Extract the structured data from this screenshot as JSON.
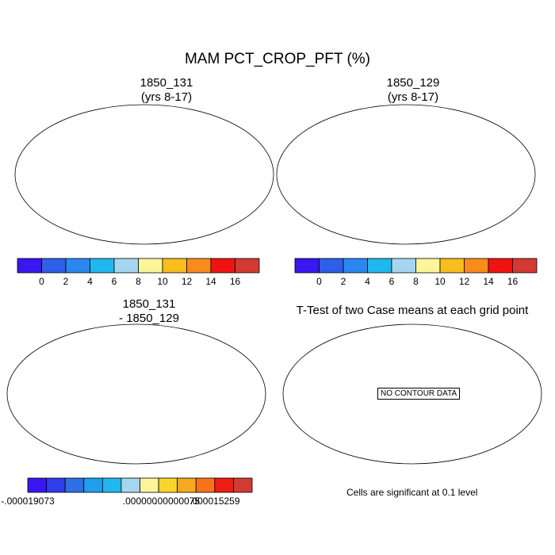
{
  "figure": {
    "title": "MAM PCT_CROP_PFT (%)"
  },
  "panels": {
    "case1": {
      "title_line1": "1850_131",
      "title_line2": "(yrs 8-17)"
    },
    "case2": {
      "title_line1": "1850_129",
      "title_line2": "(yrs 8-17)"
    },
    "diff": {
      "title_line1": "1850_131",
      "title_line2": "- 1850_129"
    },
    "ttest": {
      "title": "T-Test of two Case means at each grid point",
      "no_data_label": "NO CONTOUR DATA",
      "note": "Cells are significant at 0.1 level"
    }
  },
  "colorbars": {
    "main": {
      "colors": [
        "#3a16f0",
        "#2e5fe6",
        "#2b86ef",
        "#1fb8ee",
        "#a6d6ef",
        "#fbf59c",
        "#f7be1d",
        "#f88b1a",
        "#ef1414",
        "#d23a34"
      ],
      "labels": [
        "0",
        "2",
        "4",
        "6",
        "8",
        "10",
        "12",
        "14",
        "16"
      ]
    },
    "diff": {
      "colors": [
        "#3a16f0",
        "#2e3ee8",
        "#2e6ee6",
        "#1f9ef0",
        "#20b8ee",
        "#a6d6ef",
        "#fbf59c",
        "#f7d52a",
        "#f7a81d",
        "#f7731a",
        "#ef1e14",
        "#d23a34"
      ],
      "labels": [
        {
          "text": "-.000019073",
          "boundary": 0
        },
        {
          "text": ".000000",
          "boundary": 6
        },
        {
          "text": ".00000075",
          "boundary": 8
        },
        {
          "text": ".000015259",
          "boundary": 10
        }
      ]
    }
  },
  "map_colors": {
    "ocean": "#ffffff",
    "land_low": "#2f5fe2",
    "crop_mid": "#f6c022",
    "crop_high": "#e8241a",
    "diff_land": "#fbf59c",
    "diff_neg": "#5a2bd0",
    "diff_pos": "#e83020"
  }
}
